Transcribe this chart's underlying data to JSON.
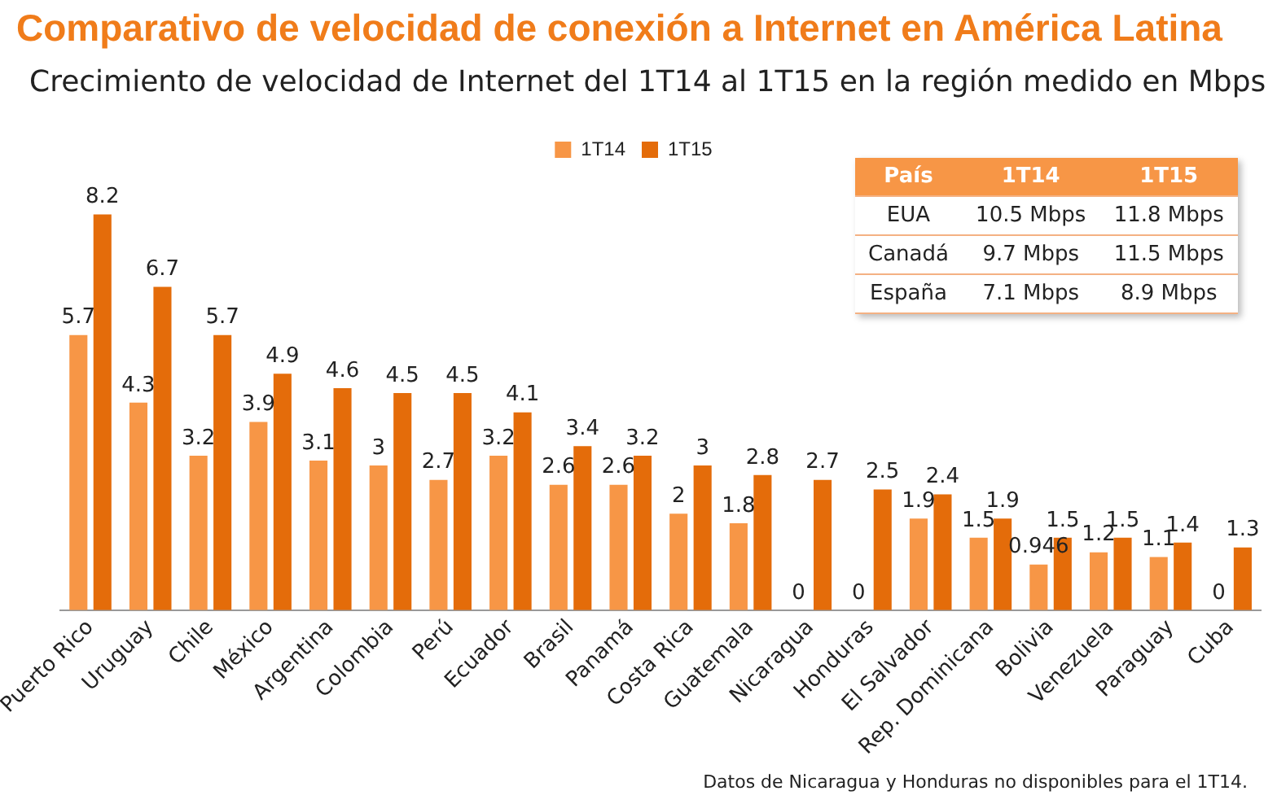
{
  "chart_data": {
    "type": "bar",
    "title": "Comparativo de velocidad de conexión a Internet en América Latina",
    "subtitle": "Crecimiento de velocidad de Internet del 1T14 al 1T15 en la región medido en Mbps",
    "categories": [
      "Puerto Rico",
      "Uruguay",
      "Chile",
      "México",
      "Argentina",
      "Colombia",
      "Perú",
      "Ecuador",
      "Brasil",
      "Panamá",
      "Costa Rica",
      "Guatemala",
      "Nicaragua",
      "Honduras",
      "El Salvador",
      "Rep. Dominicana",
      "Bolivia",
      "Venezuela",
      "Paraguay",
      "Cuba"
    ],
    "series": [
      {
        "name": "1T14",
        "color": "#f79646",
        "values": [
          5.7,
          4.3,
          3.2,
          3.9,
          3.1,
          3,
          2.7,
          3.2,
          2.6,
          2.6,
          2,
          1.8,
          0,
          0,
          1.9,
          1.5,
          0.946,
          1.2,
          1.1,
          0
        ]
      },
      {
        "name": "1T15",
        "color": "#e46c0a",
        "values": [
          8.2,
          6.7,
          5.7,
          4.9,
          4.6,
          4.5,
          4.5,
          4.1,
          3.4,
          3.2,
          3,
          2.8,
          2.7,
          2.5,
          2.4,
          1.9,
          1.5,
          1.5,
          1.4,
          1.3
        ]
      }
    ],
    "data_labels": true,
    "legend": "top",
    "grid": false,
    "tick_labels": "x",
    "annotations": [
      "País",
      "1T14",
      "1T15",
      "EUA",
      "10.5 Mbps",
      "11.8 Mbps",
      "Canadá",
      "9.7 Mbps",
      "11.5 Mbps",
      "España",
      "7.1 Mbps",
      "8.9 Mbps",
      "Datos de Nicaragua y Honduras no disponibles para el 1T14."
    ]
  }
}
